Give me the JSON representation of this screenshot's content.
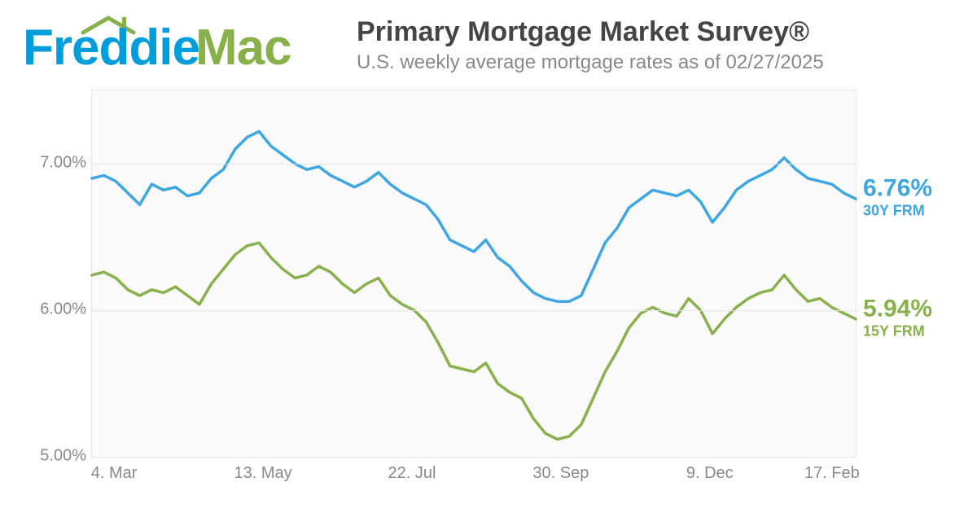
{
  "brand": {
    "word1": "Freddie",
    "word2": "Mac",
    "roof_color": "#88b04b"
  },
  "title": "Primary Mortgage Market Survey®",
  "subtitle": "U.S. weekly average mortgage rates as of 02/27/2025",
  "chart": {
    "type": "line",
    "background_color": "#fafafa",
    "border_color": "#e6e6e6",
    "grid_color": "#e6e6e6",
    "axis_label_color": "#888888",
    "axis_label_fontsize": 20,
    "ylim": [
      5.0,
      7.5
    ],
    "yticks": [
      5.0,
      6.0,
      7.0
    ],
    "ytick_labels": [
      "5.00%",
      "6.00%",
      "7.00%"
    ],
    "xtick_positions": [
      0.03,
      0.225,
      0.42,
      0.615,
      0.81,
      0.97
    ],
    "xtick_labels": [
      "4. Mar",
      "13. May",
      "22. Jul",
      "30. Sep",
      "9. Dec",
      "17. Feb"
    ],
    "line_width": 3.5,
    "series": [
      {
        "name": "30Y FRM",
        "color": "#3ea6e0",
        "end_value_label": "6.76%",
        "data": [
          6.9,
          6.92,
          6.88,
          6.8,
          6.72,
          6.86,
          6.82,
          6.84,
          6.78,
          6.8,
          6.9,
          6.96,
          7.1,
          7.18,
          7.22,
          7.12,
          7.06,
          7.0,
          6.96,
          6.98,
          6.92,
          6.88,
          6.84,
          6.88,
          6.94,
          6.86,
          6.8,
          6.76,
          6.72,
          6.62,
          6.48,
          6.44,
          6.4,
          6.48,
          6.36,
          6.3,
          6.2,
          6.12,
          6.08,
          6.06,
          6.06,
          6.1,
          6.28,
          6.46,
          6.56,
          6.7,
          6.76,
          6.82,
          6.8,
          6.78,
          6.82,
          6.74,
          6.6,
          6.7,
          6.82,
          6.88,
          6.92,
          6.96,
          7.04,
          6.96,
          6.9,
          6.88,
          6.86,
          6.8,
          6.76
        ]
      },
      {
        "name": "15Y FRM",
        "color": "#88b04b",
        "end_value_label": "5.94%",
        "data": [
          6.24,
          6.26,
          6.22,
          6.14,
          6.1,
          6.14,
          6.12,
          6.16,
          6.1,
          6.04,
          6.18,
          6.28,
          6.38,
          6.44,
          6.46,
          6.36,
          6.28,
          6.22,
          6.24,
          6.3,
          6.26,
          6.18,
          6.12,
          6.18,
          6.22,
          6.1,
          6.04,
          6.0,
          5.92,
          5.78,
          5.62,
          5.6,
          5.58,
          5.64,
          5.5,
          5.44,
          5.4,
          5.26,
          5.16,
          5.12,
          5.14,
          5.22,
          5.4,
          5.58,
          5.72,
          5.88,
          5.98,
          6.02,
          5.98,
          5.96,
          6.08,
          6.0,
          5.84,
          5.94,
          6.02,
          6.08,
          6.12,
          6.14,
          6.24,
          6.14,
          6.06,
          6.08,
          6.02,
          5.98,
          5.94
        ]
      }
    ]
  }
}
